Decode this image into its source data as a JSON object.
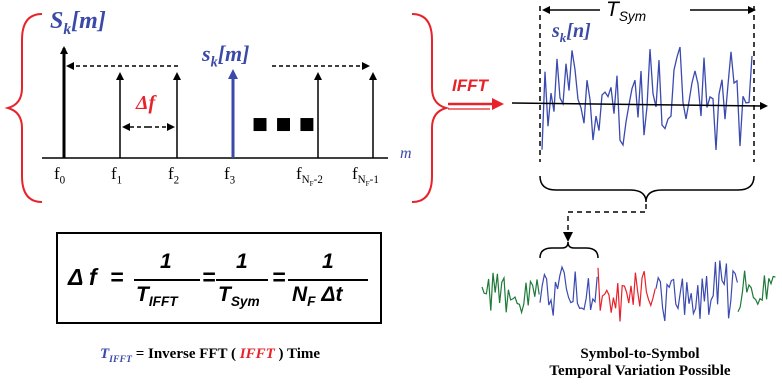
{
  "colors": {
    "impulse_black": "#000000",
    "impulse_blue": "#3b4aa8",
    "accent_red": "#e8222a",
    "brace_red": "#e8222a",
    "wave_blue": "#3b4ab0",
    "wave_green": "#1f7a3a",
    "wave_red": "#e8222a"
  },
  "spectrum": {
    "big_label": "S",
    "big_label_sub": "k",
    "big_label_arg": "[m]",
    "small_label": "s",
    "small_label_sub": "k",
    "small_label_arg": "[m]",
    "delta_f": "Δf",
    "ellipsis": "■ ■ ■",
    "axis_label": "m",
    "freq_labels": [
      "f",
      "f",
      "f",
      "f",
      "f",
      "f"
    ],
    "freq_subs": [
      "0",
      "1",
      "2",
      "3",
      "N",
      "N"
    ],
    "freq_subs2": [
      "",
      "",
      "",
      "",
      "F",
      "F"
    ],
    "freq_subs3": [
      "",
      "",
      "",
      "",
      "-2",
      "-1"
    ]
  },
  "ifft": {
    "label": "IFFT"
  },
  "time": {
    "period_label": "T",
    "period_sub": "Sym",
    "signal_label": "s",
    "signal_sub": "k",
    "signal_arg": "[n]"
  },
  "formula": {
    "lhs": "Δ f",
    "eq1": "=",
    "eq2": "=",
    "eq3": "=",
    "num1": "1",
    "num2": "1",
    "num3": "1",
    "den1": "T",
    "den1_sub": "IFFT",
    "den2": "T",
    "den2_sub": "Sym",
    "den3_a": "N",
    "den3_a_sub": "F",
    "den3_b": "Δt"
  },
  "caption": {
    "t": "T",
    "t_sub": "IFFT",
    "text1": " = Inverse FFT ( ",
    "ifft": "IFFT",
    "text2": " ) Time"
  },
  "bottom_caption": {
    "line1": "Symbol-to-Symbol",
    "line2": "Temporal Variation Possible"
  }
}
